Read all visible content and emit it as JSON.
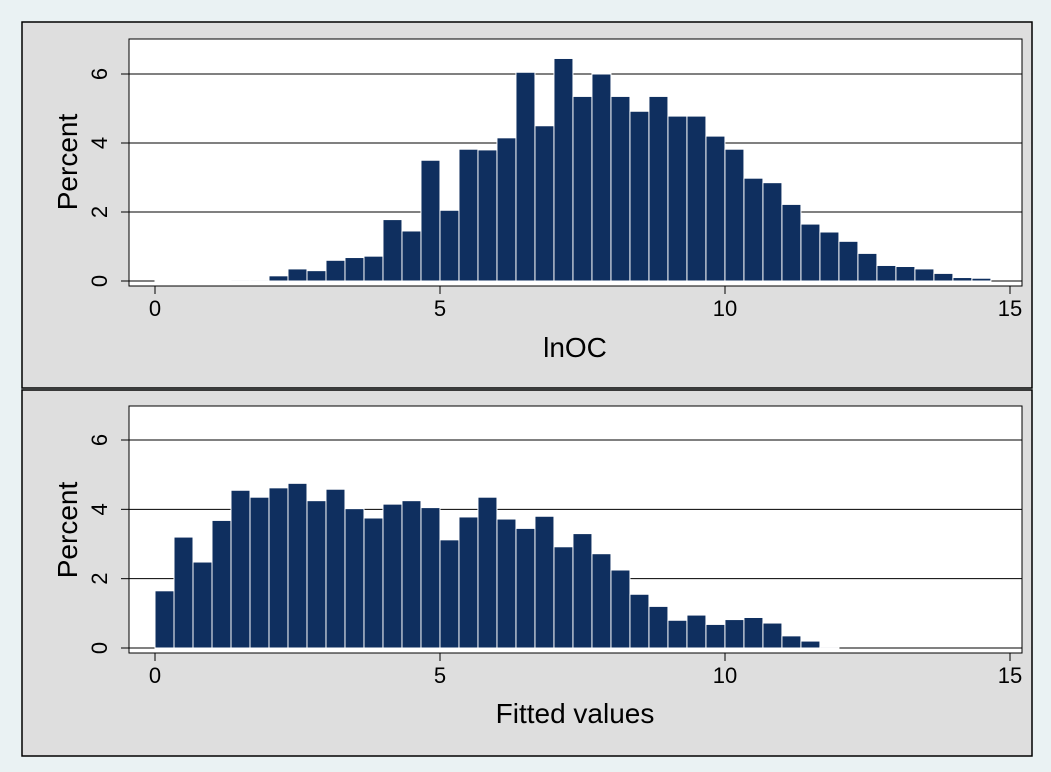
{
  "colors": {
    "background": "#eaf2f3",
    "panel": "#dedede",
    "plot": "#ffffff",
    "bar": "#0f2f5f",
    "bar_outline": "#ffffff"
  },
  "chart_data": [
    {
      "type": "bar",
      "subtype": "histogram",
      "xlabel": "lnOC",
      "ylabel": "Percent",
      "xlim": [
        0,
        15
      ],
      "ylim": [
        0,
        6.5
      ],
      "xticks": [
        "0",
        "5",
        "10",
        "15"
      ],
      "yticks": [
        "0",
        "2",
        "4",
        "6"
      ],
      "grid": true,
      "bin_start": 0,
      "bin_width": 0.3333,
      "values": [
        0.02,
        0.02,
        0.02,
        0.02,
        0.03,
        0.03,
        0.15,
        0.35,
        0.3,
        0.6,
        0.68,
        0.72,
        1.78,
        1.45,
        3.5,
        2.05,
        3.82,
        3.8,
        4.15,
        6.05,
        4.5,
        6.45,
        5.35,
        6.0,
        5.35,
        4.92,
        5.35,
        4.78,
        4.78,
        4.2,
        3.82,
        2.98,
        2.85,
        2.22,
        1.65,
        1.42,
        1.15,
        0.8,
        0.45,
        0.42,
        0.35,
        0.22,
        0.1,
        0.08
      ]
    },
    {
      "type": "bar",
      "subtype": "histogram",
      "xlabel": "Fitted values",
      "ylabel": "Percent",
      "xlim": [
        0,
        15
      ],
      "ylim": [
        0,
        6.5
      ],
      "xticks": [
        "0",
        "5",
        "10",
        "15"
      ],
      "yticks": [
        "0",
        "2",
        "4",
        "6"
      ],
      "grid": true,
      "bin_start": 0,
      "bin_width": 0.3333,
      "values": [
        1.65,
        3.2,
        2.48,
        3.68,
        4.55,
        4.35,
        4.62,
        4.75,
        4.25,
        4.58,
        4.02,
        3.75,
        4.15,
        4.25,
        4.05,
        3.12,
        3.78,
        4.35,
        3.72,
        3.45,
        3.8,
        2.92,
        3.3,
        2.72,
        2.25,
        1.55,
        1.2,
        0.8,
        0.95,
        0.68,
        0.82,
        0.88,
        0.72,
        0.35,
        0.2,
        0.03
      ]
    }
  ]
}
